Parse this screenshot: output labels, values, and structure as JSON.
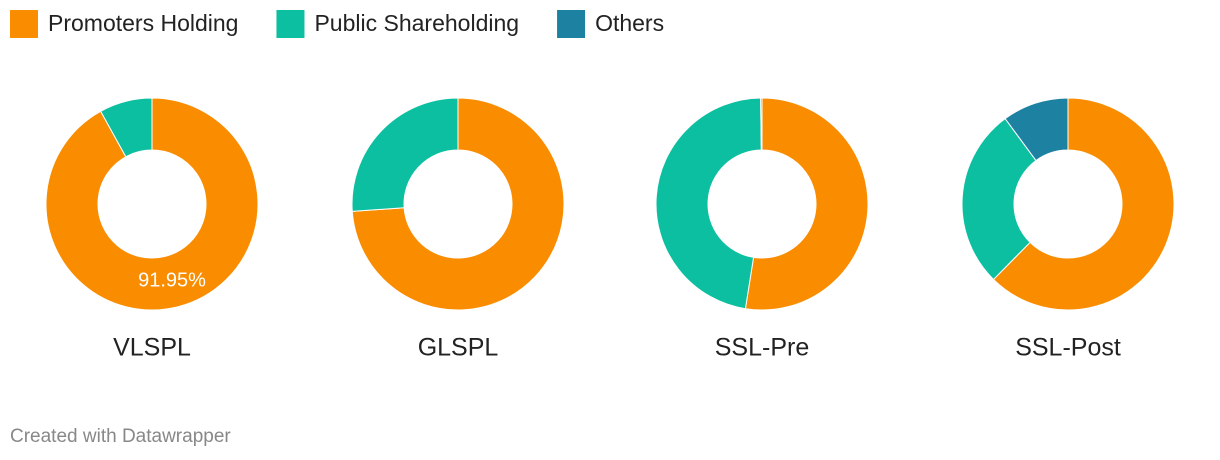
{
  "chart_data": {
    "type": "donut",
    "categories": [
      "VLSPL",
      "GLSPL",
      "SSL-Pre",
      "SSL-Post"
    ],
    "series": [
      {
        "name": "Promoters Holding",
        "color": "#fa8c00",
        "values": [
          91.95,
          73.9,
          52.5,
          62.4
        ],
        "value_labels": [
          "91.95%",
          null,
          null,
          null
        ]
      },
      {
        "name": "Public Shareholding",
        "color": "#0bbfa0",
        "values": [
          8.05,
          26.1,
          47.3,
          27.5
        ]
      },
      {
        "name": "Others",
        "color": "#1d81a2",
        "values": [
          0,
          0,
          0.2,
          10.1
        ]
      }
    ],
    "legend": "top-left",
    "credit": "Created with Datawrapper"
  }
}
